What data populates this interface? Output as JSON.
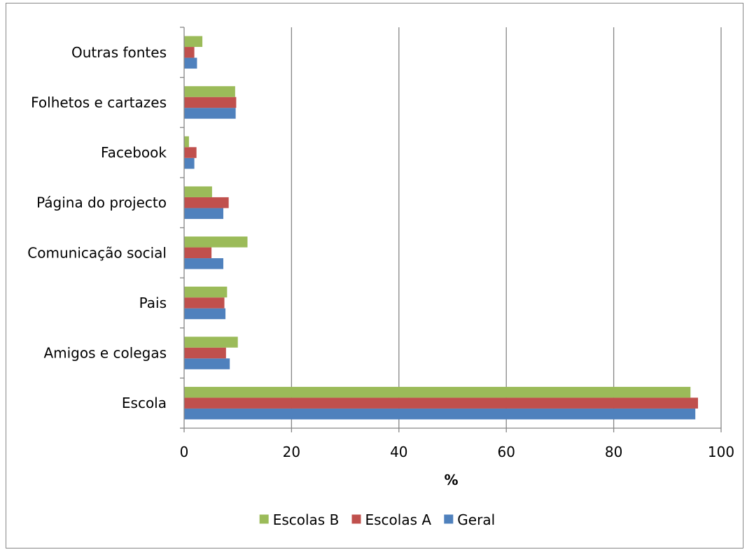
{
  "chart_data": {
    "type": "bar",
    "orientation": "horizontal",
    "categories": [
      "Escola",
      "Amigos e colegas",
      "Pais",
      "Comunicação social",
      "Página do projecto",
      "Facebook",
      "Folhetos e cartazes",
      "Outras fontes"
    ],
    "series": [
      {
        "name": "Geral",
        "color": "#4F81BD",
        "values": [
          95.2,
          8.5,
          7.7,
          7.3,
          7.3,
          1.9,
          9.6,
          2.4
        ]
      },
      {
        "name": "Escolas A",
        "color": "#C0504D",
        "values": [
          95.7,
          7.8,
          7.5,
          5.1,
          8.3,
          2.3,
          9.7,
          1.9
        ]
      },
      {
        "name": "Escolas B",
        "color": "#9BBB59",
        "values": [
          94.3,
          10.0,
          8.0,
          11.8,
          5.2,
          0.9,
          9.5,
          3.4
        ]
      }
    ],
    "xlabel": "%",
    "xlim": [
      0,
      100
    ],
    "xticks": [
      0,
      20,
      40,
      60,
      80,
      100
    ],
    "grid": "vertical major gridlines",
    "legend_position": "bottom",
    "legend_order": [
      "Escolas B",
      "Escolas A",
      "Geral"
    ]
  }
}
